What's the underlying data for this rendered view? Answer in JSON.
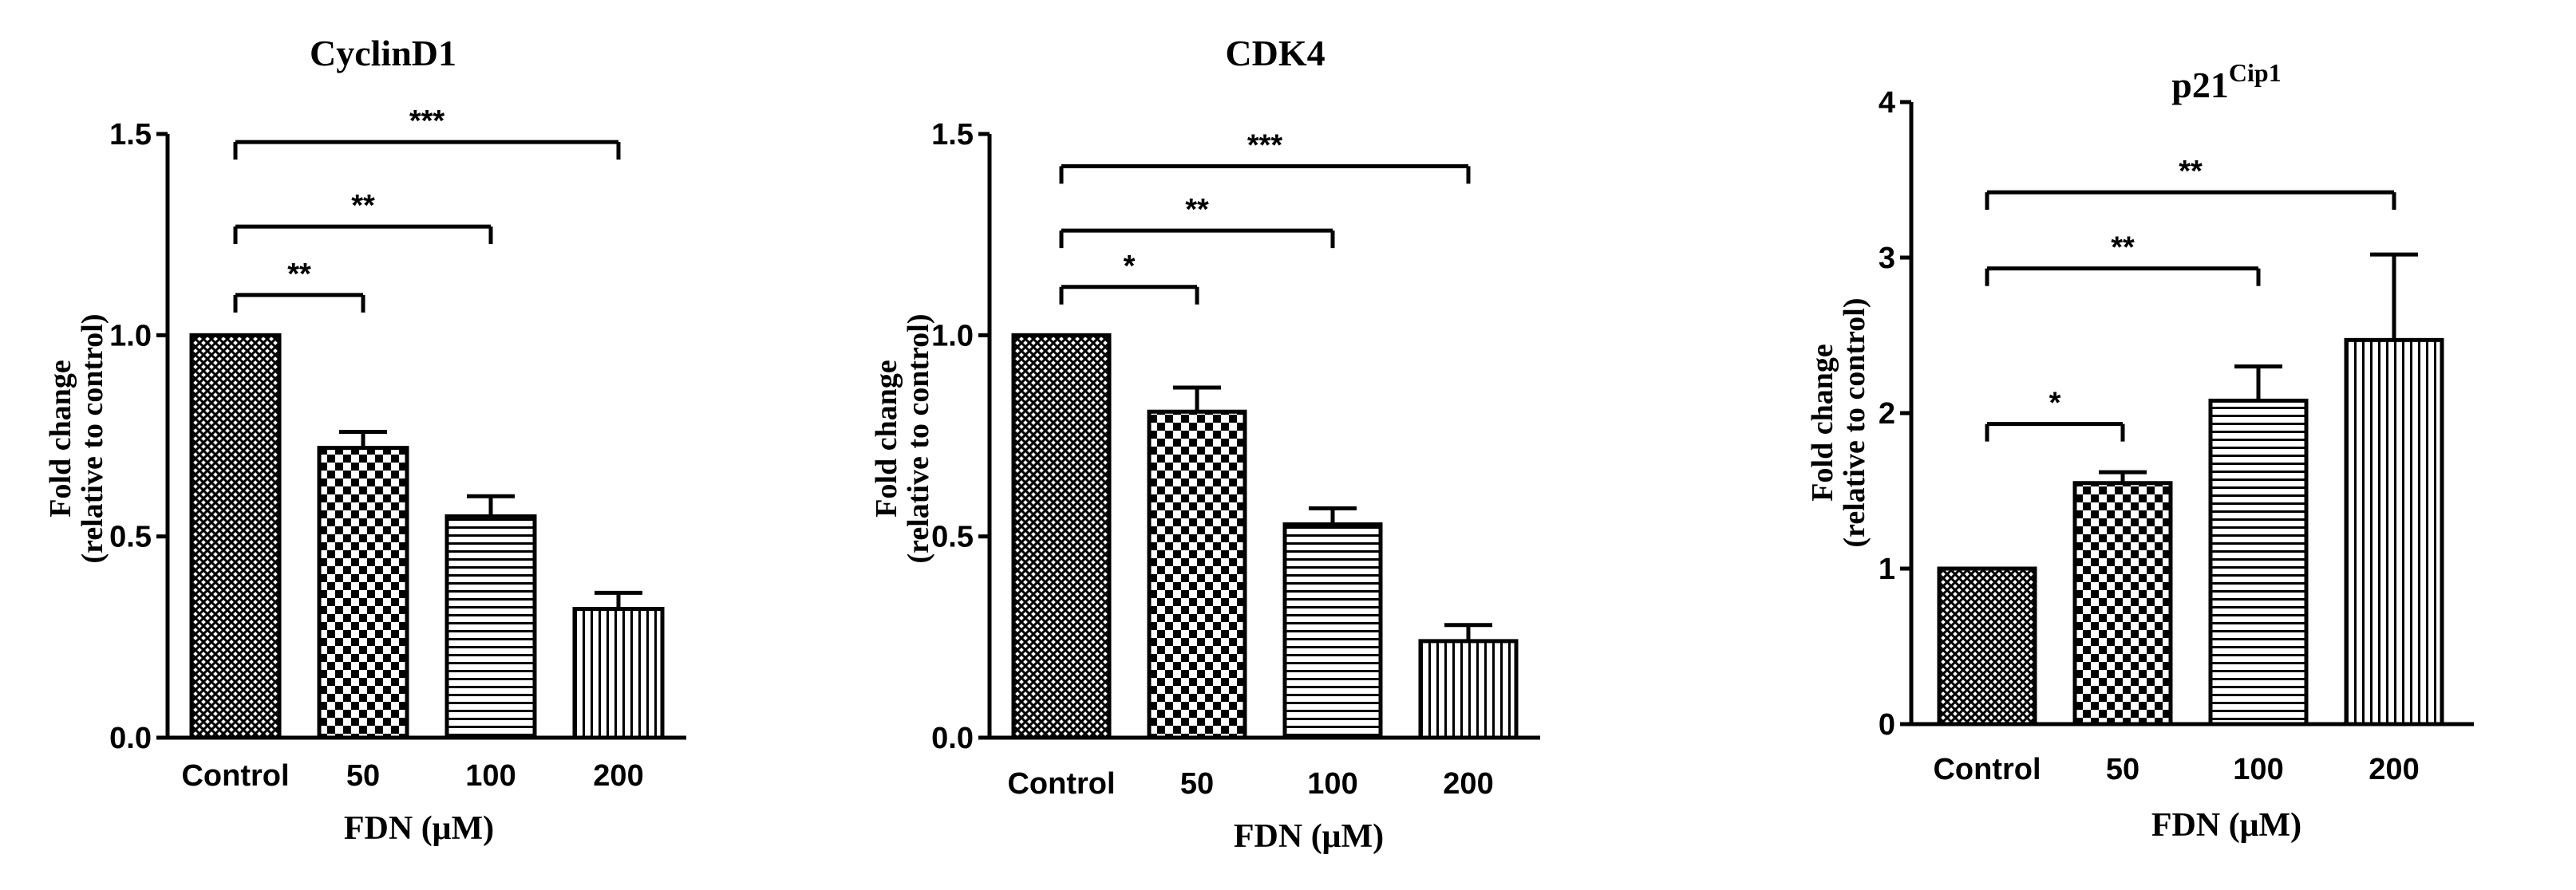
{
  "chart_data": [
    {
      "type": "bar",
      "title": "CyclinD1",
      "title_sup": "",
      "ylabel_line1": "Fold change",
      "ylabel_line2": "(relative to control)",
      "xlabel": "FDN (μM)",
      "categories": [
        "Control",
        "50",
        "100",
        "200"
      ],
      "values": [
        1.0,
        0.72,
        0.55,
        0.32
      ],
      "errors": [
        0.0,
        0.04,
        0.05,
        0.04
      ],
      "patterns": [
        "crosshatch",
        "checker",
        "hlines",
        "vlines"
      ],
      "ylim": [
        0,
        1.5
      ],
      "yticks": [
        "0.0",
        "0.5",
        "1.0",
        "1.5"
      ],
      "ytick_values": [
        0,
        0.5,
        1.0,
        1.5
      ],
      "significance": [
        {
          "from": 0,
          "to": 1,
          "y": 1.1,
          "label": "**"
        },
        {
          "from": 0,
          "to": 2,
          "y": 1.27,
          "label": "**"
        },
        {
          "from": 0,
          "to": 3,
          "y": 1.48,
          "label": "***"
        }
      ]
    },
    {
      "type": "bar",
      "title": "CDK4",
      "title_sup": "",
      "ylabel_line1": "Fold change",
      "ylabel_line2": "(relative to control)",
      "xlabel": "FDN (μM)",
      "categories": [
        "Control",
        "50",
        "100",
        "200"
      ],
      "values": [
        1.0,
        0.81,
        0.53,
        0.24
      ],
      "errors": [
        0.0,
        0.06,
        0.04,
        0.04
      ],
      "patterns": [
        "crosshatch",
        "checker",
        "hlines",
        "vlines"
      ],
      "ylim": [
        0,
        1.5
      ],
      "yticks": [
        "0.0",
        "0.5",
        "1.0",
        "1.5"
      ],
      "ytick_values": [
        0,
        0.5,
        1.0,
        1.5
      ],
      "significance": [
        {
          "from": 0,
          "to": 1,
          "y": 1.12,
          "label": "*"
        },
        {
          "from": 0,
          "to": 2,
          "y": 1.26,
          "label": "**"
        },
        {
          "from": 0,
          "to": 3,
          "y": 1.42,
          "label": "***"
        }
      ]
    },
    {
      "type": "bar",
      "title": "p21",
      "title_sup": "Cip1",
      "ylabel_line1": "Fold change",
      "ylabel_line2": "(relative to control)",
      "xlabel": "FDN (μM)",
      "categories": [
        "Control",
        "50",
        "100",
        "200"
      ],
      "values": [
        1.0,
        1.55,
        2.08,
        2.47
      ],
      "errors": [
        0.0,
        0.07,
        0.22,
        0.55
      ],
      "patterns": [
        "crosshatch",
        "checker",
        "hlines",
        "vlines"
      ],
      "ylim": [
        0,
        4
      ],
      "yticks": [
        "0",
        "1",
        "2",
        "3",
        "4"
      ],
      "ytick_values": [
        0,
        1,
        2,
        3,
        4
      ],
      "significance": [
        {
          "from": 0,
          "to": 1,
          "y": 1.93,
          "label": "*"
        },
        {
          "from": 0,
          "to": 2,
          "y": 2.93,
          "label": "**"
        },
        {
          "from": 0,
          "to": 3,
          "y": 3.42,
          "label": "**"
        }
      ]
    }
  ]
}
